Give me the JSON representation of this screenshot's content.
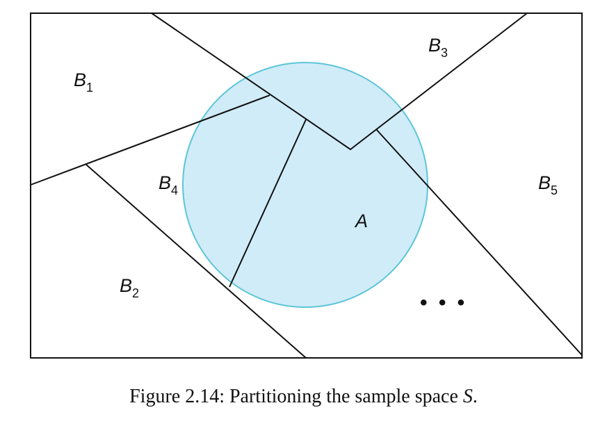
{
  "figure": {
    "event_label": "A",
    "partitions": [
      {
        "letter": "B",
        "index": "1"
      },
      {
        "letter": "B",
        "index": "2"
      },
      {
        "letter": "B",
        "index": "3"
      },
      {
        "letter": "B",
        "index": "4"
      },
      {
        "letter": "B",
        "index": "5"
      }
    ],
    "ellipsis": "• • •",
    "colors": {
      "circle_fill": "#d0ecf8",
      "circle_stroke": "#5cc5d8",
      "lines": "#111111"
    }
  },
  "caption": {
    "text": "Figure 2.14: Partitioning the sample space ",
    "variable": "S",
    "end": "."
  }
}
